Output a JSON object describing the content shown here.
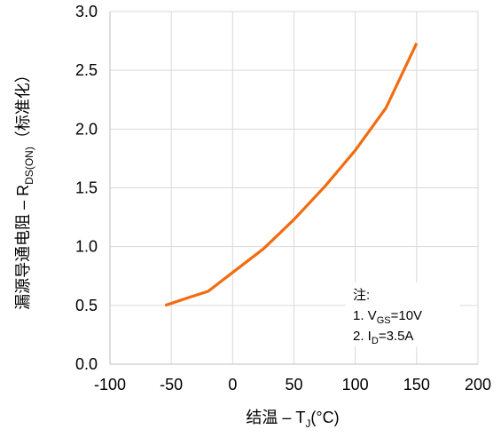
{
  "chart_data": {
    "type": "line",
    "xlabel": "结温 – T_J(°C)",
    "ylabel": "漏源导通电阻 – R_DS(ON)（标准化）",
    "xlim": [
      -100,
      200
    ],
    "ylim": [
      0.0,
      3.0
    ],
    "x_ticks": [
      "-100",
      "-50",
      "0",
      "50",
      "100",
      "150",
      "200"
    ],
    "y_ticks": [
      "0.0",
      "0.5",
      "1.0",
      "1.5",
      "2.0",
      "2.5",
      "3.0"
    ],
    "grid": true,
    "series": [
      {
        "color": "#F26B0F",
        "x": [
          -55,
          -35,
          -20,
          0,
          25,
          50,
          75,
          100,
          125,
          150
        ],
        "y": [
          0.5,
          0.57,
          0.62,
          0.78,
          0.98,
          1.23,
          1.51,
          1.82,
          2.18,
          2.73
        ]
      }
    ],
    "annotation": {
      "title": "注:",
      "lines": [
        "1. V_GS=10V",
        "2. I_D=3.5A"
      ]
    }
  },
  "text": {
    "xlabel_main": "结温  –  T",
    "xlabel_sub": "J",
    "xlabel_tail": "(°C)",
    "ylabel_main": "漏源导通电阻 –  R",
    "ylabel_sub": "DS(ON)",
    "ylabel_tail": "（标准化）",
    "note_title": "注:",
    "note1_main": "1. V",
    "note1_sub": "GS",
    "note1_tail": "=10V",
    "note2_main": "2. I",
    "note2_sub": "D",
    "note2_tail": "=3.5A"
  }
}
